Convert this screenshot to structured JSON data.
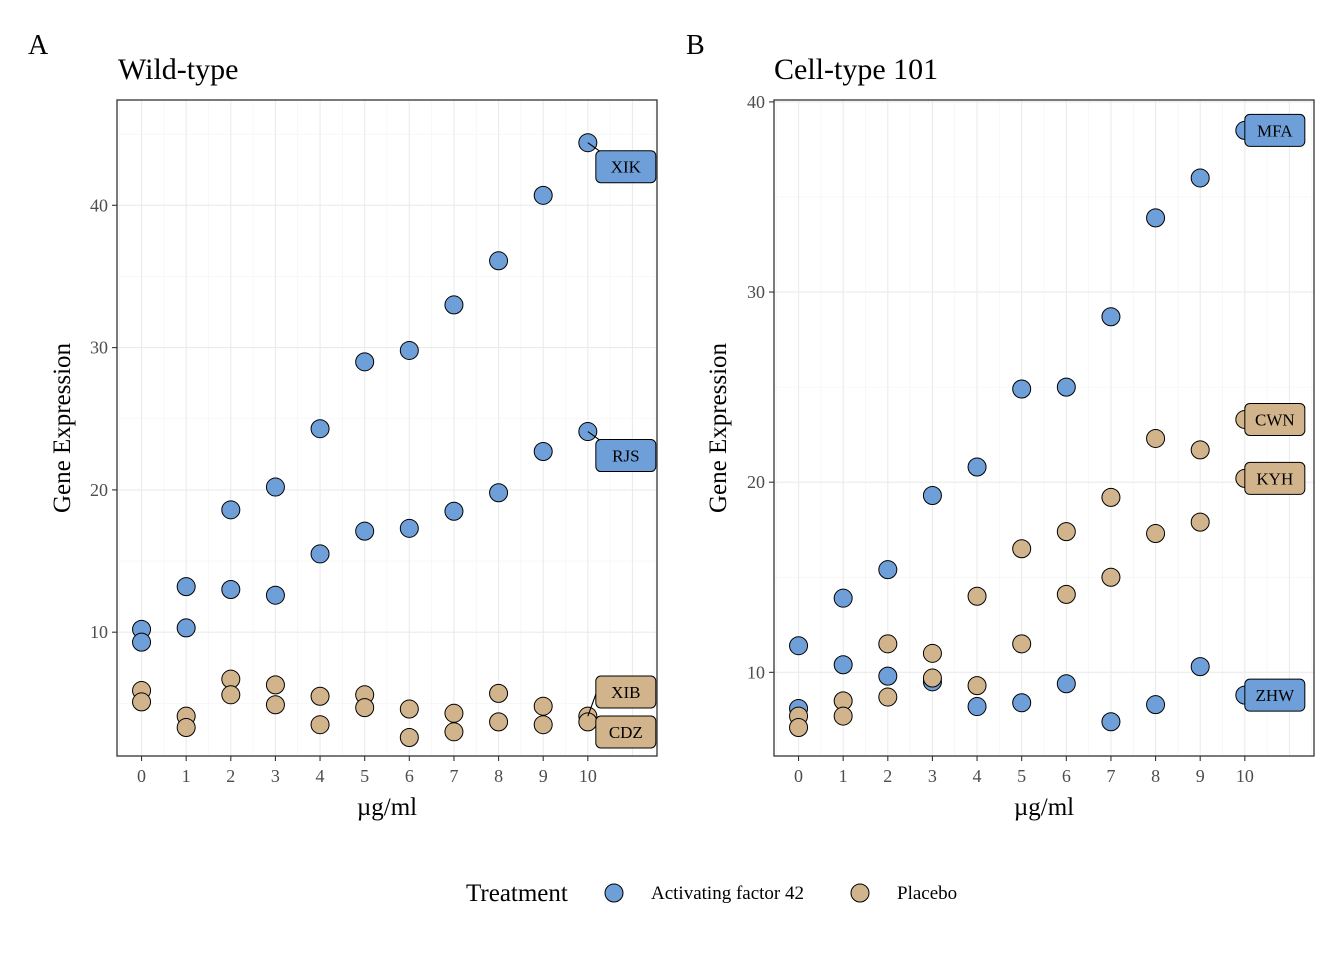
{
  "legend": {
    "title": "Treatment",
    "items": [
      {
        "label": "Activating factor 42",
        "color": "#6f9fd8"
      },
      {
        "label": "Placebo",
        "color": "#d2b48c"
      }
    ]
  },
  "chart_data": [
    {
      "type": "scatter",
      "panel": "A",
      "title": "Wild-type",
      "xlabel": "µg/ml",
      "ylabel": "Gene Expression",
      "xlim": [
        -0.55,
        11.55
      ],
      "ylim": [
        1.3,
        47.4
      ],
      "xticks": [
        0,
        1,
        2,
        3,
        4,
        5,
        6,
        7,
        8,
        9,
        10
      ],
      "yticks": [
        10,
        20,
        30,
        40
      ],
      "grid": true,
      "legend_position": "bottom",
      "series": [
        {
          "name": "Activating factor 42",
          "color": "#6f9fd8",
          "points": [
            [
              0,
              10.2
            ],
            [
              0,
              9.3
            ],
            [
              1,
              13.2
            ],
            [
              1,
              10.3
            ],
            [
              2,
              18.6
            ],
            [
              2,
              13.0
            ],
            [
              3,
              20.2
            ],
            [
              3,
              12.6
            ],
            [
              4,
              24.3
            ],
            [
              4,
              15.5
            ],
            [
              5,
              29.0
            ],
            [
              5,
              17.1
            ],
            [
              6,
              29.8
            ],
            [
              6,
              17.3
            ],
            [
              7,
              33.0
            ],
            [
              7,
              18.5
            ],
            [
              8,
              36.1
            ],
            [
              8,
              19.8
            ],
            [
              9,
              40.7
            ],
            [
              9,
              22.7
            ],
            [
              10,
              44.4
            ],
            [
              10,
              24.1
            ]
          ]
        },
        {
          "name": "Placebo",
          "color": "#d2b48c",
          "points": [
            [
              0,
              5.9
            ],
            [
              0,
              5.1
            ],
            [
              1,
              4.1
            ],
            [
              1,
              3.3
            ],
            [
              2,
              6.7
            ],
            [
              2,
              5.6
            ],
            [
              3,
              6.3
            ],
            [
              3,
              4.9
            ],
            [
              4,
              5.5
            ],
            [
              4,
              3.5
            ],
            [
              5,
              5.6
            ],
            [
              5,
              4.7
            ],
            [
              6,
              4.6
            ],
            [
              6,
              2.6
            ],
            [
              7,
              4.3
            ],
            [
              7,
              3.0
            ],
            [
              8,
              5.7
            ],
            [
              8,
              3.7
            ],
            [
              9,
              4.8
            ],
            [
              9,
              3.5
            ],
            [
              10,
              4.1
            ],
            [
              10,
              3.7
            ]
          ]
        }
      ],
      "annotations": [
        {
          "text": "XIK",
          "x": 10,
          "y": 44.4,
          "series": "Activating factor 42"
        },
        {
          "text": "RJS",
          "x": 10,
          "y": 24.1,
          "series": "Activating factor 42"
        },
        {
          "text": "XIB",
          "x": 10,
          "y": 4.1,
          "series": "Placebo"
        },
        {
          "text": "CDZ",
          "x": 10,
          "y": 3.7,
          "series": "Placebo"
        }
      ]
    },
    {
      "type": "scatter",
      "panel": "B",
      "title": "Cell-type 101",
      "xlabel": "µg/ml",
      "ylabel": "Gene Expression",
      "xlim": [
        -0.55,
        11.55
      ],
      "ylim": [
        5.6,
        40.1
      ],
      "xticks": [
        0,
        1,
        2,
        3,
        4,
        5,
        6,
        7,
        8,
        9,
        10
      ],
      "yticks": [
        10,
        20,
        30,
        40
      ],
      "grid": true,
      "legend_position": "bottom",
      "series": [
        {
          "name": "Activating factor 42",
          "color": "#6f9fd8",
          "points": [
            [
              0,
              11.4
            ],
            [
              0,
              8.1
            ],
            [
              1,
              13.9
            ],
            [
              1,
              10.4
            ],
            [
              2,
              15.4
            ],
            [
              2,
              9.8
            ],
            [
              3,
              19.3
            ],
            [
              3,
              9.5
            ],
            [
              4,
              20.8
            ],
            [
              4,
              8.2
            ],
            [
              5,
              24.9
            ],
            [
              5,
              8.4
            ],
            [
              6,
              25.0
            ],
            [
              6,
              9.4
            ],
            [
              7,
              28.7
            ],
            [
              7,
              7.4
            ],
            [
              8,
              33.9
            ],
            [
              8,
              8.3
            ],
            [
              9,
              36.0
            ],
            [
              9,
              10.3
            ],
            [
              10,
              38.5
            ],
            [
              10,
              8.8
            ]
          ]
        },
        {
          "name": "Placebo",
          "color": "#d2b48c",
          "points": [
            [
              0,
              7.7
            ],
            [
              0,
              7.1
            ],
            [
              1,
              8.5
            ],
            [
              1,
              7.7
            ],
            [
              2,
              11.5
            ],
            [
              2,
              8.7
            ],
            [
              3,
              11.0
            ],
            [
              3,
              9.7
            ],
            [
              4,
              14.0
            ],
            [
              4,
              9.3
            ],
            [
              5,
              16.5
            ],
            [
              5,
              11.5
            ],
            [
              6,
              17.4
            ],
            [
              6,
              14.1
            ],
            [
              7,
              19.2
            ],
            [
              7,
              15.0
            ],
            [
              8,
              22.3
            ],
            [
              8,
              17.3
            ],
            [
              9,
              21.7
            ],
            [
              9,
              17.9
            ],
            [
              10,
              23.3
            ],
            [
              10,
              20.2
            ]
          ]
        }
      ],
      "annotations": [
        {
          "text": "MFA",
          "x": 10,
          "y": 38.5,
          "series": "Activating factor 42"
        },
        {
          "text": "CWN",
          "x": 10,
          "y": 23.3,
          "series": "Placebo"
        },
        {
          "text": "KYH",
          "x": 10,
          "y": 20.2,
          "series": "Placebo"
        },
        {
          "text": "ZHW",
          "x": 10,
          "y": 8.8,
          "series": "Activating factor 42"
        }
      ]
    }
  ]
}
